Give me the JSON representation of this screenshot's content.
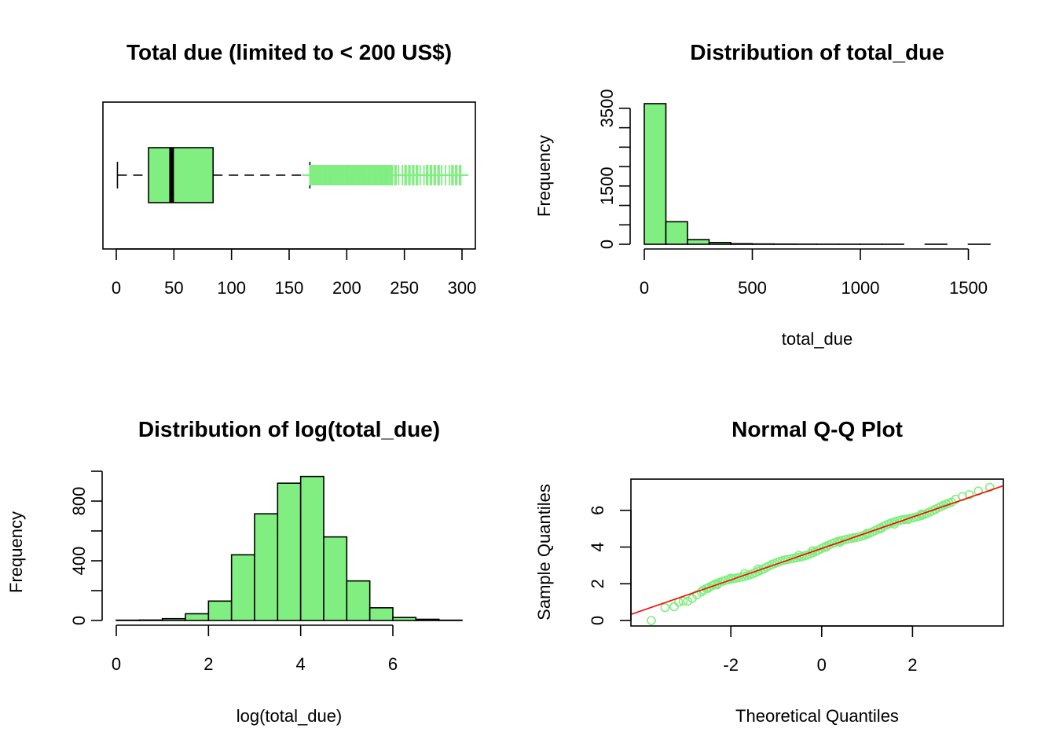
{
  "colors": {
    "fill": "#80ee80",
    "stroke": "#000000",
    "qq_points": "#80ee80",
    "qq_line": "#ff0000"
  },
  "chart_data": [
    {
      "type": "boxplot",
      "title": "Total due (limited to < 200 US$)",
      "orientation": "horizontal",
      "xlim": [
        0,
        310
      ],
      "ticks": [
        "0",
        "50",
        "100",
        "150",
        "200",
        "250",
        "300"
      ],
      "whisker_low": 1,
      "q1": 28,
      "median": 48,
      "q3": 84,
      "whisker_high": 168,
      "outlier_range": [
        168,
        300
      ],
      "xlabel": "",
      "ylabel": ""
    },
    {
      "type": "bar",
      "title": "Distribution of total_due",
      "xlabel": "total_due",
      "ylabel": "Frequency",
      "bin_edges": [
        0,
        100,
        200,
        300,
        400,
        500,
        600,
        700,
        800,
        900,
        1000,
        1100,
        1200,
        1300,
        1400,
        1500,
        1600
      ],
      "values": [
        3620,
        580,
        120,
        45,
        15,
        8,
        5,
        3,
        2,
        1,
        1,
        1,
        0,
        1,
        0,
        1
      ],
      "xlim": [
        0,
        1600
      ],
      "ylim": [
        0,
        3700
      ],
      "xticks": [
        "0",
        "500",
        "1000",
        "1500"
      ],
      "yticks": [
        "0",
        "1500",
        "3500"
      ]
    },
    {
      "type": "bar",
      "title": "Distribution of log(total_due)",
      "xlabel": "log(total_due)",
      "ylabel": "Frequency",
      "bin_edges": [
        0,
        0.5,
        1,
        1.5,
        2,
        2.5,
        3,
        3.5,
        4,
        4.5,
        5,
        5.5,
        6,
        6.5,
        7,
        7.5
      ],
      "values": [
        2,
        3,
        12,
        45,
        130,
        440,
        715,
        920,
        965,
        560,
        265,
        85,
        20,
        8,
        2
      ],
      "xlim": [
        0,
        7.5
      ],
      "ylim": [
        0,
        1000
      ],
      "xticks": [
        "0",
        "2",
        "4",
        "6"
      ],
      "yticks": [
        "0",
        "400",
        "800"
      ]
    },
    {
      "type": "scatter",
      "title": "Normal Q-Q Plot",
      "xlabel": "Theoretical Quantiles",
      "ylabel": "Sample Quantiles",
      "xlim": [
        -4.2,
        4.0
      ],
      "ylim": [
        -0.3,
        7.7
      ],
      "xticks": [
        "-2",
        "0",
        "2"
      ],
      "yticks": [
        "0",
        "2",
        "4",
        "6"
      ],
      "points": [
        [
          -3.75,
          0.0
        ],
        [
          -3.45,
          0.7
        ],
        [
          -3.25,
          0.75
        ],
        [
          -3.15,
          1.0
        ],
        [
          -3.05,
          1.05
        ],
        [
          -2.95,
          1.05
        ],
        [
          -2.85,
          1.2
        ],
        [
          -2.75,
          1.4
        ],
        [
          -2.65,
          1.55
        ],
        [
          -2.5,
          1.75
        ],
        [
          -2.3,
          1.95
        ],
        [
          -2.0,
          2.3
        ],
        [
          -1.7,
          2.55
        ],
        [
          -1.4,
          2.8
        ],
        [
          -1.1,
          3.05
        ],
        [
          -0.8,
          3.3
        ],
        [
          -0.5,
          3.55
        ],
        [
          -0.2,
          3.8
        ],
        [
          0.1,
          4.0
        ],
        [
          0.4,
          4.25
        ],
        [
          0.7,
          4.5
        ],
        [
          1.0,
          4.75
        ],
        [
          1.3,
          5.0
        ],
        [
          1.6,
          5.25
        ],
        [
          1.9,
          5.5
        ],
        [
          2.2,
          5.8
        ],
        [
          2.5,
          6.05
        ],
        [
          2.75,
          6.35
        ],
        [
          2.95,
          6.6
        ],
        [
          3.1,
          6.75
        ],
        [
          3.25,
          6.85
        ],
        [
          3.45,
          7.05
        ],
        [
          3.7,
          7.25
        ]
      ],
      "line": {
        "intercept": 3.92,
        "slope": 0.855
      }
    }
  ]
}
